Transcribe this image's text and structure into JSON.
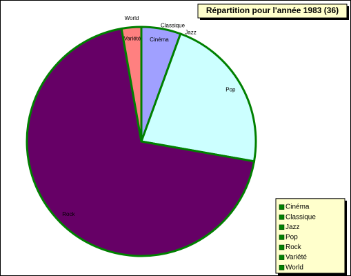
{
  "chart_data": {
    "type": "pie",
    "title": "Répartition pour l'année 1983 (36)",
    "categories": [
      "Cinéma",
      "Classique",
      "Jazz",
      "Pop",
      "Rock",
      "Variété",
      "World"
    ],
    "values": [
      2,
      0,
      0,
      8,
      25,
      1,
      0
    ],
    "colors": [
      "#a0a0ff",
      "#993366",
      "#ffffcc",
      "#ccffff",
      "#660066",
      "#ff8080",
      "#0066cc"
    ],
    "edge_color": "#008000",
    "legend": "bottom-right"
  }
}
